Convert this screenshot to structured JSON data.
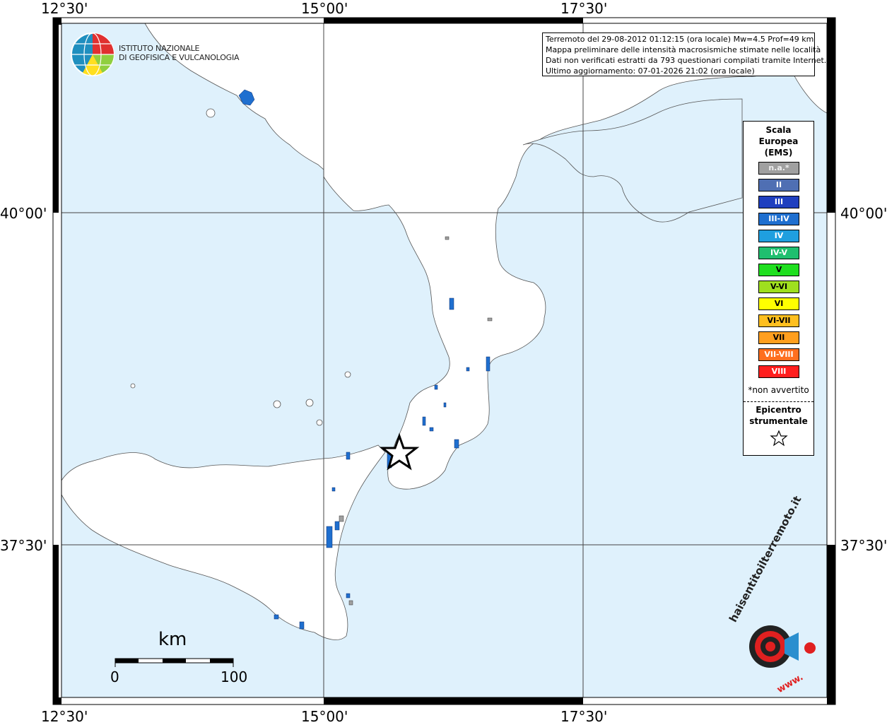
{
  "frame": {
    "lon_labels": [
      "12°30'",
      "15°00'",
      "17°30'"
    ],
    "lat_labels": [
      "40°00'",
      "37°30'"
    ]
  },
  "institute": {
    "name_line1": "ISTITUTO NAZIONALE",
    "name_line2": "DI GEOFISICA E VULCANOLOGIA"
  },
  "info": {
    "line1": "Terremoto del 29-08-2012 01:12:15 (ora locale) Mw=4.5 Prof=49 km",
    "line2": "Mappa preliminare delle intensità macrosismiche stimate nelle località",
    "line3": "Dati non verificati estratti da 793 questionari compilati tramite Internet.",
    "line4": "Ultimo aggiornamento: 07-01-2026 21:02 (ora locale)"
  },
  "legend": {
    "title_line1": "Scala",
    "title_line2": "Europea",
    "title_line3": "(EMS)",
    "items": [
      {
        "label": "n.a.*",
        "color": "#a0a0a0"
      },
      {
        "label": "II",
        "color": "#4f6fb3"
      },
      {
        "label": "III",
        "color": "#1f3fbf"
      },
      {
        "label": "III-IV",
        "color": "#1f6fcf"
      },
      {
        "label": "IV",
        "color": "#1f9fdf"
      },
      {
        "label": "IV-V",
        "color": "#1fbf6f"
      },
      {
        "label": "V",
        "color": "#1fdf1f"
      },
      {
        "label": "V-VI",
        "color": "#9fdf1f"
      },
      {
        "label": "VI",
        "color": "#ffff00"
      },
      {
        "label": "VI-VII",
        "color": "#ffbf1f"
      },
      {
        "label": "VII",
        "color": "#ff9f1f"
      },
      {
        "label": "VII-VIII",
        "color": "#ff6f1f"
      },
      {
        "label": "VIII",
        "color": "#ff1f1f"
      }
    ],
    "note": "*non avvertito",
    "epicenter_line1": "Epicentro",
    "epicenter_line2": "strumentale"
  },
  "scale_bar": {
    "unit": "km",
    "min": "0",
    "max": "100"
  },
  "brand": {
    "text_top": "haisentitoilterremoto.it",
    "text_bottom": "www."
  },
  "colors": {
    "sea": "#dff1fc",
    "land": "#ffffff",
    "intensity_main": "#1f6fcf"
  }
}
